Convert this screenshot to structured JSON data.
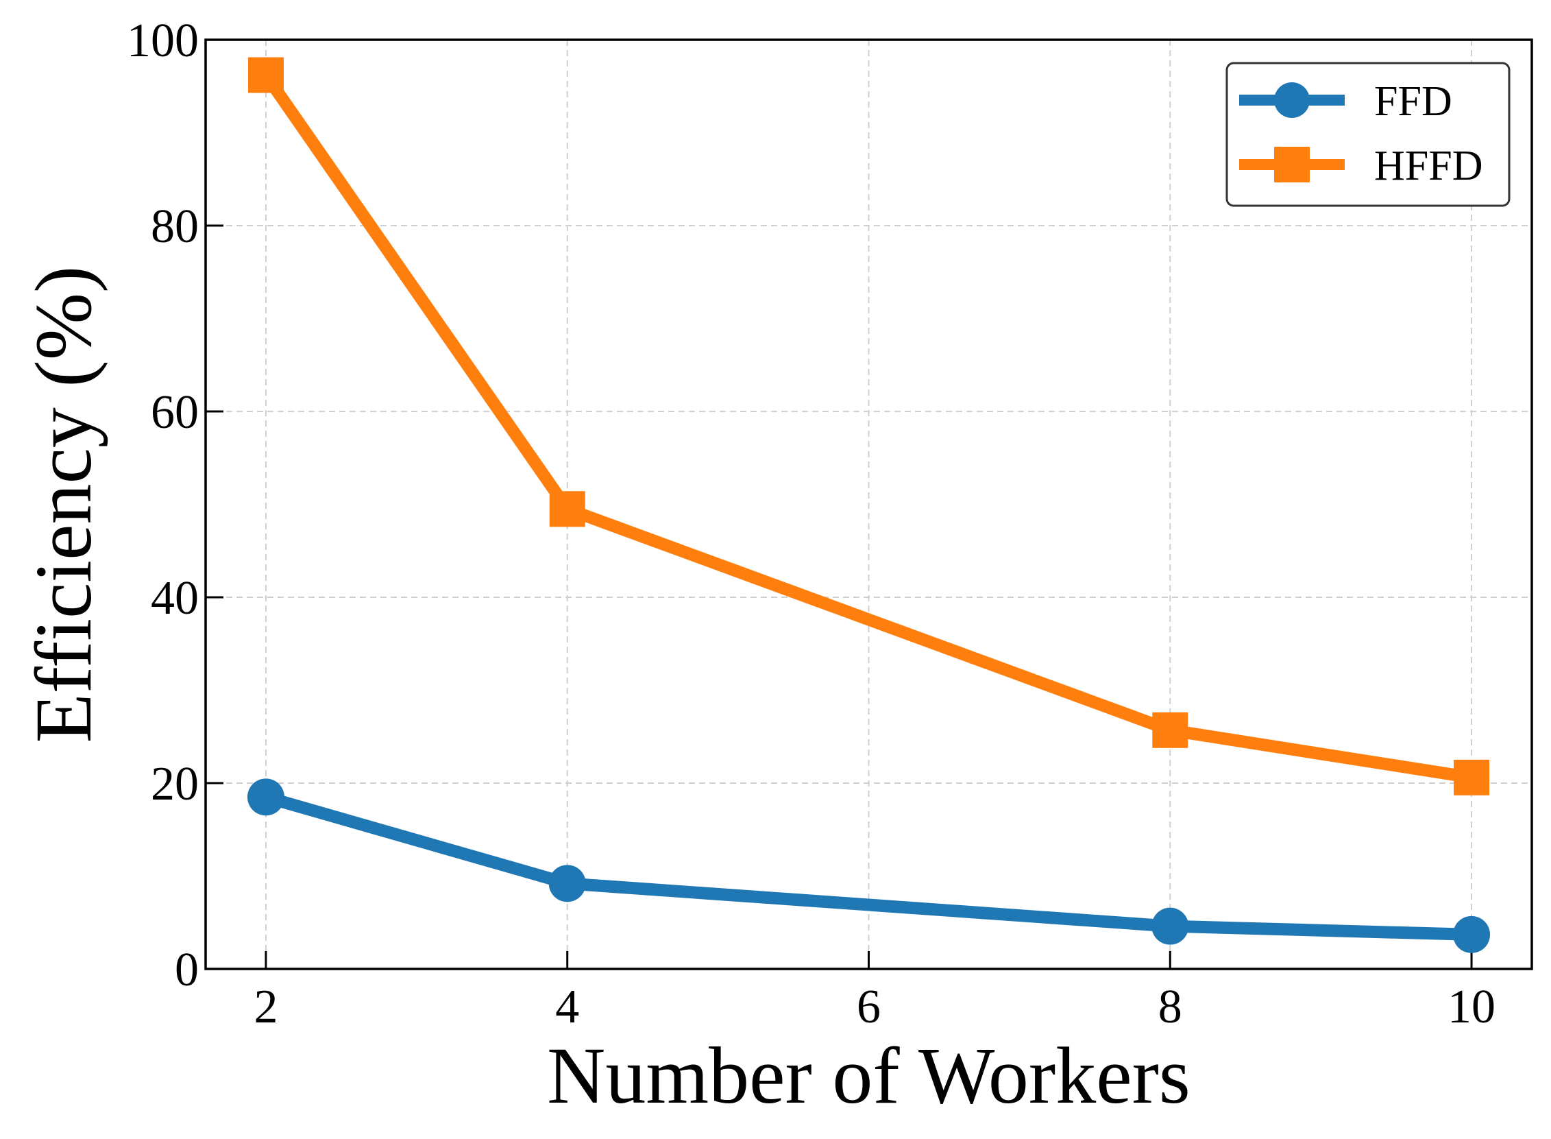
{
  "chart_data": {
    "type": "line",
    "xlabel": "Number of Workers",
    "ylabel": "Efficiency (%)",
    "xlim": [
      1.6,
      10.4
    ],
    "ylim": [
      0,
      100
    ],
    "x_ticks": [
      2,
      4,
      6,
      8,
      10
    ],
    "y_ticks": [
      0,
      20,
      40,
      60,
      80,
      100
    ],
    "grid": true,
    "legend_position": "top-right",
    "series": [
      {
        "name": "FFD",
        "color": "#1f77b4",
        "marker": "circle",
        "x": [
          2,
          4,
          8,
          10
        ],
        "values": [
          18.5,
          9.2,
          4.6,
          3.7
        ]
      },
      {
        "name": "HFFD",
        "color": "#ff7f0e",
        "marker": "square",
        "x": [
          2,
          4,
          8,
          10
        ],
        "values": [
          96.2,
          49.5,
          25.7,
          20.6
        ]
      }
    ]
  }
}
